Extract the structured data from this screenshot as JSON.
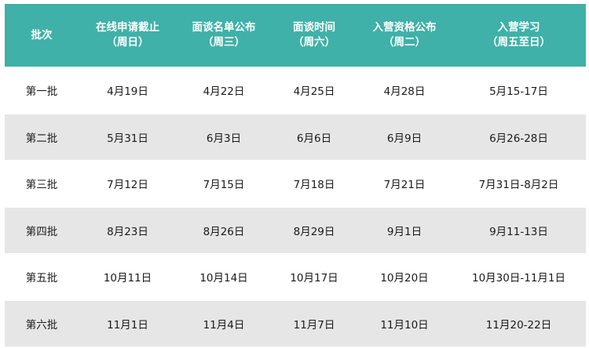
{
  "colors": {
    "header_bg": "#3fb1a8",
    "alt_row_bg": "#e6e6e6"
  },
  "headers": [
    {
      "line1": "批次",
      "line2": ""
    },
    {
      "line1": "在线申请截止",
      "line2": "（周日）"
    },
    {
      "line1": "面谈名单公布",
      "line2": "（周三）"
    },
    {
      "line1": "面谈时间",
      "line2": "（周六）"
    },
    {
      "line1": "入营资格公布",
      "line2": "（周二）"
    },
    {
      "line1": "入营学习",
      "line2": "（周五至日）"
    }
  ],
  "rows": [
    [
      "第一批",
      "4月19日",
      "4月22日",
      "4月25日",
      "4月28日",
      "5月15-17日"
    ],
    [
      "第二批",
      "5月31日",
      "6月3日",
      "6月6日",
      "6月9日",
      "6月26-28日"
    ],
    [
      "第三批",
      "7月12日",
      "7月15日",
      "7月18日",
      "7月21日",
      "7月31日-8月2日"
    ],
    [
      "第四批",
      "8月23日",
      "8月26日",
      "8月29日",
      "9月1日",
      "9月11-13日"
    ],
    [
      "第五批",
      "10月11日",
      "10月14日",
      "10月17日",
      "10月20日",
      "10月30日-11月1日"
    ],
    [
      "第六批",
      "11月1日",
      "11月4日",
      "11月7日",
      "11月10日",
      "11月20-22日"
    ]
  ]
}
